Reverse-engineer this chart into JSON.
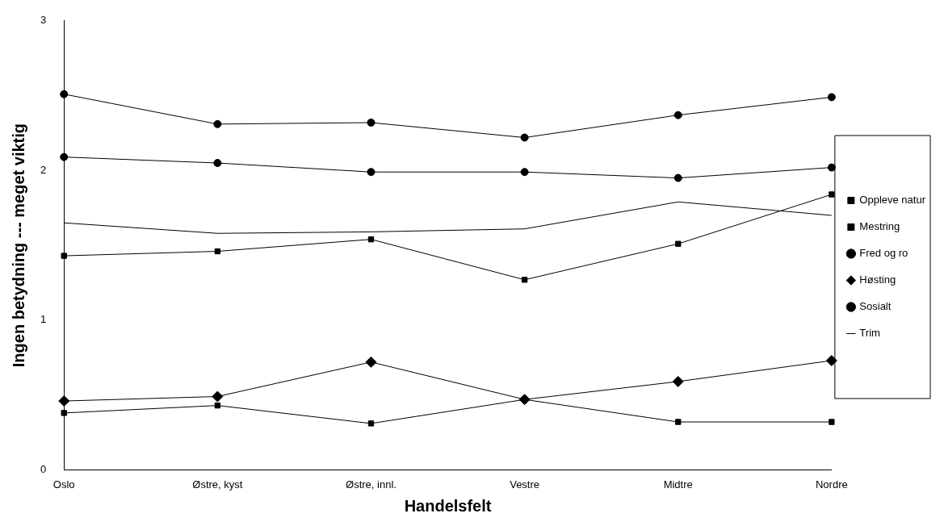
{
  "chart_data": {
    "type": "line",
    "xlabel": "Handelsfelt",
    "ylabel": "Ingen betydning --- meget viktig",
    "categories": [
      "Oslo",
      "Østre, kyst",
      "Østre, innl.",
      "Vestre",
      "Midtre",
      "Nordre"
    ],
    "ylim": [
      0,
      3
    ],
    "yticks": [
      0,
      1,
      2,
      3
    ],
    "grid": false,
    "legend": "right",
    "line_style": "solid",
    "series": [
      {
        "name": "Oppleve natur",
        "color": "#000000",
        "marker": "square",
        "values": [
          1.43,
          1.46,
          1.54,
          1.27,
          1.51,
          1.84
        ]
      },
      {
        "name": "Mestring",
        "color": "#000000",
        "marker": "square",
        "values": [
          0.38,
          0.43,
          0.31,
          0.47,
          0.32,
          0.32
        ]
      },
      {
        "name": "Fred og ro",
        "color": "#000000",
        "marker": "circle",
        "values": [
          2.51,
          2.31,
          2.32,
          2.22,
          2.37,
          2.49
        ]
      },
      {
        "name": "Høsting",
        "color": "#000000",
        "marker": "diamond",
        "values": [
          0.46,
          0.49,
          0.72,
          0.47,
          0.59,
          0.73
        ]
      },
      {
        "name": "Sosialt",
        "color": "#000000",
        "marker": "circle",
        "values": [
          2.09,
          2.05,
          1.99,
          1.99,
          1.95,
          2.02
        ]
      },
      {
        "name": "Trim",
        "color": "#000000",
        "marker": "none",
        "values": [
          1.65,
          1.58,
          1.59,
          1.61,
          1.79,
          1.7
        ]
      }
    ]
  }
}
